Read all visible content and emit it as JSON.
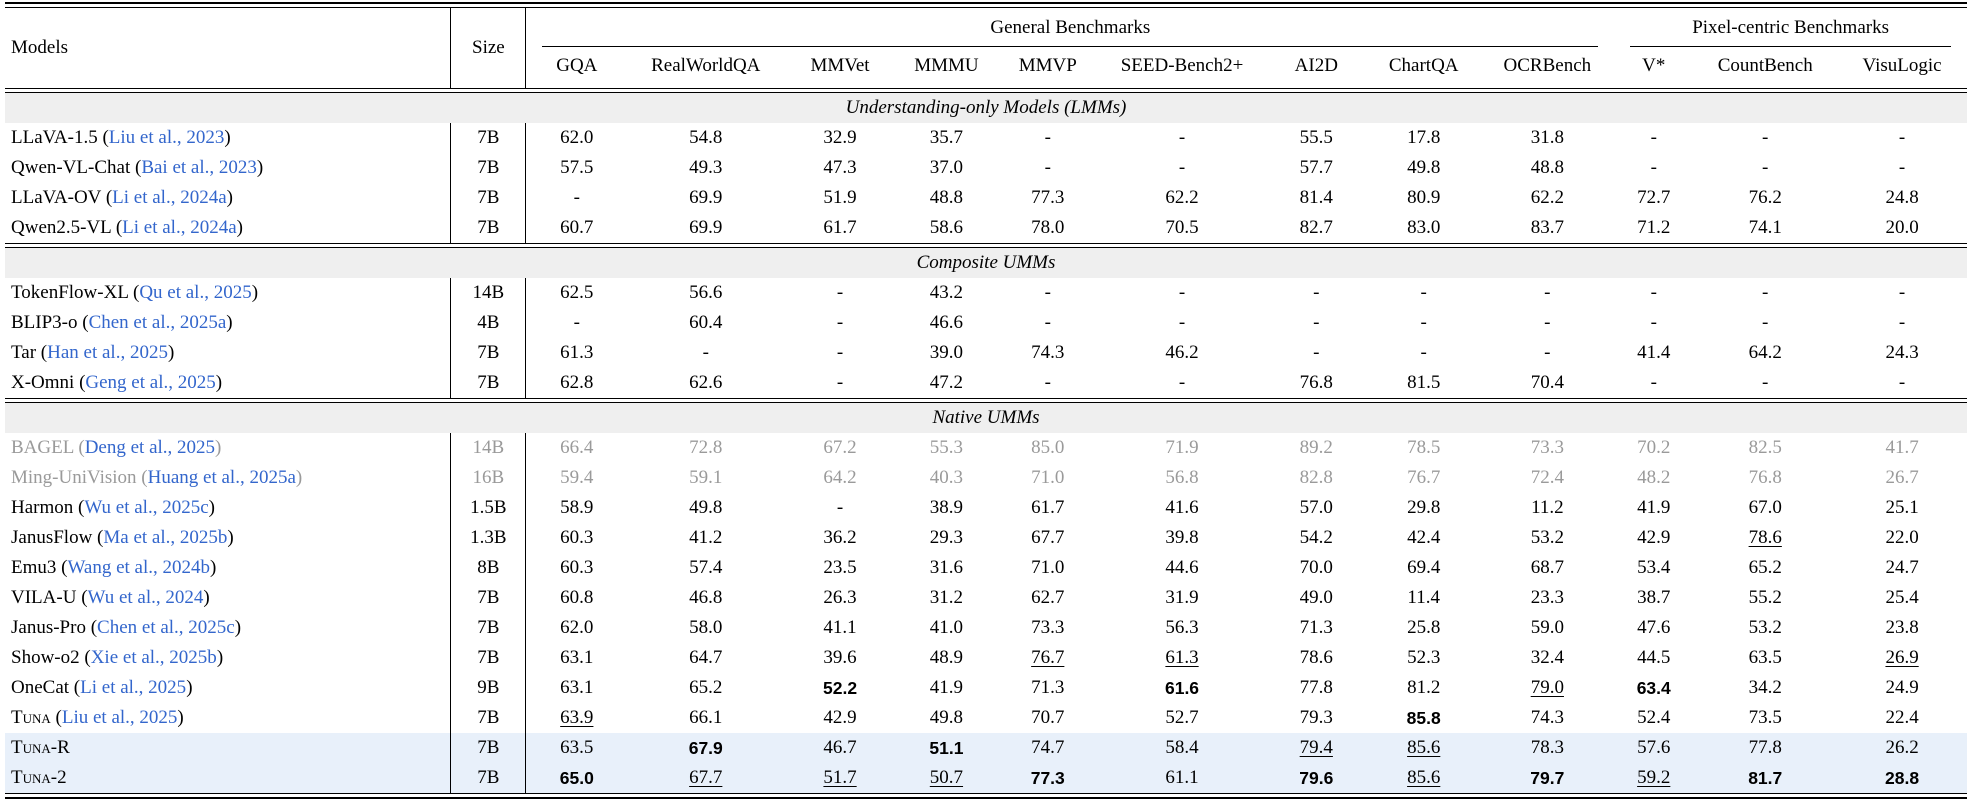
{
  "table": {
    "models_header": "Models",
    "size_header": "Size",
    "groups": [
      {
        "label": "General Benchmarks"
      },
      {
        "label": "Pixel-centric Benchmarks"
      }
    ],
    "columns": [
      "GQA",
      "RealWorldQA",
      "MMVet",
      "MMMU",
      "MMVP",
      "SEED-Bench2+",
      "AI2D",
      "ChartQA",
      "OCRBench",
      "V*",
      "CountBench",
      "VisuLogic"
    ],
    "colors": {
      "link_blue": "#3366cc",
      "gray_text": "#9a9a9a",
      "section_band_bg": "#efefef",
      "highlight_row_bg": "#e8f0fa"
    },
    "sections": [
      {
        "title": "Understanding-only Models (LMMs)",
        "rows": [
          {
            "model": "LLaVA-1.5",
            "cite": "Liu et al., 2023",
            "size": "7B",
            "values": [
              "62.0",
              "54.8",
              "32.9",
              "35.7",
              "-",
              "-",
              "55.5",
              "17.8",
              "31.8",
              "-",
              "-",
              "-"
            ]
          },
          {
            "model": "Qwen-VL-Chat",
            "cite": "Bai et al., 2023",
            "size": "7B",
            "values": [
              "57.5",
              "49.3",
              "47.3",
              "37.0",
              "-",
              "-",
              "57.7",
              "49.8",
              "48.8",
              "-",
              "-",
              "-"
            ]
          },
          {
            "model": "LLaVA-OV",
            "cite": "Li et al., 2024a",
            "size": "7B",
            "values": [
              "-",
              "69.9",
              "51.9",
              "48.8",
              "77.3",
              "62.2",
              "81.4",
              "80.9",
              "62.2",
              "72.7",
              "76.2",
              "24.8"
            ]
          },
          {
            "model": "Qwen2.5-VL",
            "cite": "Li et al., 2024a",
            "size": "7B",
            "values": [
              "60.7",
              "69.9",
              "61.7",
              "58.6",
              "78.0",
              "70.5",
              "82.7",
              "83.0",
              "83.7",
              "71.2",
              "74.1",
              "20.0"
            ]
          }
        ]
      },
      {
        "title": "Composite UMMs",
        "rows": [
          {
            "model": "TokenFlow-XL",
            "cite": "Qu et al., 2025",
            "size": "14B",
            "values": [
              "62.5",
              "56.6",
              "-",
              "43.2",
              "-",
              "-",
              "-",
              "-",
              "-",
              "-",
              "-",
              "-"
            ]
          },
          {
            "model": "BLIP3-o",
            "cite": "Chen et al., 2025a",
            "size": "4B",
            "values": [
              "-",
              "60.4",
              "-",
              "46.6",
              "-",
              "-",
              "-",
              "-",
              "-",
              "-",
              "-",
              "-"
            ]
          },
          {
            "model": "Tar",
            "cite": "Han et al., 2025",
            "size": "7B",
            "values": [
              "61.3",
              "-",
              "-",
              "39.0",
              "74.3",
              "46.2",
              "-",
              "-",
              "-",
              "41.4",
              "64.2",
              "24.3"
            ]
          },
          {
            "model": "X-Omni",
            "cite": "Geng et al., 2025",
            "size": "7B",
            "values": [
              "62.8",
              "62.6",
              "-",
              "47.2",
              "-",
              "-",
              "76.8",
              "81.5",
              "70.4",
              "-",
              "-",
              "-"
            ]
          }
        ]
      },
      {
        "title": "Native UMMs",
        "rows": [
          {
            "model": "BAGEL",
            "cite": "Deng et al., 2025",
            "size": "14B",
            "gray": true,
            "values": [
              "66.4",
              "72.8",
              "67.2",
              "55.3",
              "85.0",
              "71.9",
              "89.2",
              "78.5",
              "73.3",
              "70.2",
              "82.5",
              "41.7"
            ]
          },
          {
            "model": "Ming-UniVision",
            "cite": "Huang et al., 2025a",
            "size": "16B",
            "gray": true,
            "values": [
              "59.4",
              "59.1",
              "64.2",
              "40.3",
              "71.0",
              "56.8",
              "82.8",
              "76.7",
              "72.4",
              "48.2",
              "76.8",
              "26.7"
            ]
          },
          {
            "model": "Harmon",
            "cite": "Wu et al., 2025c",
            "size": "1.5B",
            "values": [
              "58.9",
              "49.8",
              "-",
              "38.9",
              "61.7",
              "41.6",
              "57.0",
              "29.8",
              "11.2",
              "41.9",
              "67.0",
              "25.1"
            ]
          },
          {
            "model": "JanusFlow",
            "cite": "Ma et al., 2025b",
            "size": "1.3B",
            "values": [
              "60.3",
              "41.2",
              "36.2",
              "29.3",
              "67.7",
              "39.8",
              "54.2",
              "42.4",
              "53.2",
              "42.9",
              {
                "t": "78.6",
                "s": "u"
              },
              "22.0"
            ]
          },
          {
            "model": "Emu3",
            "cite": "Wang et al., 2024b",
            "size": "8B",
            "values": [
              "60.3",
              "57.4",
              "23.5",
              "31.6",
              "71.0",
              "44.6",
              "70.0",
              "69.4",
              "68.7",
              "53.4",
              "65.2",
              "24.7"
            ]
          },
          {
            "model": "VILA-U",
            "cite": "Wu et al., 2024",
            "size": "7B",
            "values": [
              "60.8",
              "46.8",
              "26.3",
              "31.2",
              "62.7",
              "31.9",
              "49.0",
              "11.4",
              "23.3",
              "38.7",
              "55.2",
              "25.4"
            ]
          },
          {
            "model": "Janus-Pro",
            "cite": "Chen et al., 2025c",
            "size": "7B",
            "values": [
              "62.0",
              "58.0",
              "41.1",
              "41.0",
              "73.3",
              "56.3",
              "71.3",
              "25.8",
              "59.0",
              "47.6",
              "53.2",
              "23.8"
            ]
          },
          {
            "model": "Show-o2",
            "cite": "Xie et al., 2025b",
            "size": "7B",
            "values": [
              "63.1",
              "64.7",
              "39.6",
              "48.9",
              {
                "t": "76.7",
                "s": "u"
              },
              {
                "t": "61.3",
                "s": "u"
              },
              "78.6",
              "52.3",
              "32.4",
              "44.5",
              "63.5",
              {
                "t": "26.9",
                "s": "u"
              }
            ]
          },
          {
            "model": "OneCat",
            "cite": "Li et al., 2025",
            "size": "9B",
            "values": [
              "63.1",
              "65.2",
              {
                "t": "52.2",
                "s": "b"
              },
              "41.9",
              "71.3",
              {
                "t": "61.6",
                "s": "b"
              },
              "77.8",
              "81.2",
              {
                "t": "79.0",
                "s": "u"
              },
              {
                "t": "63.4",
                "s": "b"
              },
              "34.2",
              "24.9"
            ]
          },
          {
            "model": "Tuna",
            "cite": "Liu et al., 2025",
            "size": "7B",
            "smallcaps": true,
            "values": [
              {
                "t": "63.9",
                "s": "u"
              },
              "66.1",
              "42.9",
              "49.8",
              "70.7",
              "52.7",
              "79.3",
              {
                "t": "85.8",
                "s": "b"
              },
              "74.3",
              "52.4",
              "73.5",
              "22.4"
            ]
          },
          {
            "model": "Tuna-R",
            "cite": "",
            "size": "7B",
            "smallcaps": true,
            "highlight": true,
            "values": [
              "63.5",
              {
                "t": "67.9",
                "s": "b"
              },
              "46.7",
              {
                "t": "51.1",
                "s": "b"
              },
              "74.7",
              "58.4",
              {
                "t": "79.4",
                "s": "u"
              },
              {
                "t": "85.6",
                "s": "u"
              },
              "78.3",
              "57.6",
              "77.8",
              "26.2"
            ]
          },
          {
            "model": "Tuna-2",
            "cite": "",
            "size": "7B",
            "smallcaps": true,
            "highlight": true,
            "values": [
              {
                "t": "65.0",
                "s": "b"
              },
              {
                "t": "67.7",
                "s": "u"
              },
              {
                "t": "51.7",
                "s": "u"
              },
              {
                "t": "50.7",
                "s": "u"
              },
              {
                "t": "77.3",
                "s": "b"
              },
              "61.1",
              {
                "t": "79.6",
                "s": "b"
              },
              {
                "t": "85.6",
                "s": "u"
              },
              {
                "t": "79.7",
                "s": "b"
              },
              {
                "t": "59.2",
                "s": "u"
              },
              {
                "t": "81.7",
                "s": "b"
              },
              {
                "t": "28.8",
                "s": "b"
              }
            ]
          }
        ]
      }
    ]
  }
}
